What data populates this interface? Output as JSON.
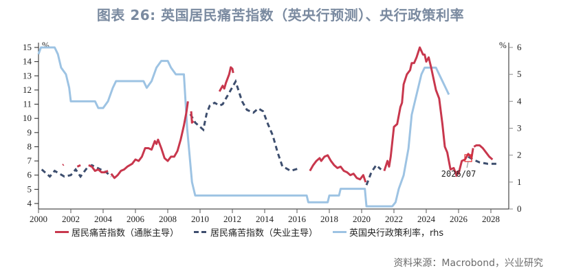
{
  "title": "图表 26: 英国居民痛苦指数（英央行预测）、央行政策利率",
  "source": "资料来源：Macrobond，兴业研究",
  "annotation": "2026/07",
  "legend": [
    {
      "label": "居民痛苦指数（通胀主导）",
      "color": "#c8374d",
      "style": "solid"
    },
    {
      "label": "居民痛苦指数（失业主导）",
      "color": "#3d4e6e",
      "style": "dashed"
    },
    {
      "label": "英国央行政策利率，rhs",
      "color": "#9dc3e3",
      "style": "solid"
    }
  ],
  "axes": {
    "left_unit": "%",
    "right_unit": "%",
    "left_ticks": [
      4,
      5,
      6,
      7,
      8,
      9,
      10,
      11,
      12,
      13,
      14,
      15
    ],
    "right_ticks": [
      0,
      1,
      2,
      3,
      4,
      5,
      6
    ],
    "x_ticks": [
      2000,
      2002,
      2004,
      2006,
      2008,
      2010,
      2012,
      2014,
      2016,
      2018,
      2020,
      2022,
      2024,
      2026,
      2028
    ]
  },
  "chart_data": {
    "type": "line",
    "title": "图表 26: 英国居民痛苦指数（英央行预测）、央行政策利率",
    "xlabel": "",
    "ylabel": "%",
    "ylabel_right": "%",
    "xlim": [
      2000,
      2029
    ],
    "ylim": [
      4,
      15
    ],
    "ylim_right": [
      0,
      6
    ],
    "grid": false,
    "legend_position": "bottom",
    "series": [
      {
        "name": "居民痛苦指数（通胀主导）",
        "axis": "left",
        "style": "solid",
        "color": "#c8374d",
        "segments": [
          [
            [
              2001.5,
              6.7
            ],
            [
              2001.55,
              6.75
            ]
          ],
          [
            [
              2002.4,
              6.6
            ],
            [
              2002.6,
              6.7
            ]
          ],
          [
            [
              2003.1,
              6.7
            ],
            [
              2003.3,
              6.6
            ],
            [
              2003.5,
              6.3
            ],
            [
              2003.7,
              6.4
            ],
            [
              2003.9,
              6.2
            ],
            [
              2004.1,
              6.2
            ],
            [
              2004.3,
              6.3
            ]
          ],
          [
            [
              2004.5,
              6.1
            ],
            [
              2004.7,
              5.8
            ],
            [
              2004.9,
              6.0
            ],
            [
              2005.1,
              6.3
            ],
            [
              2005.3,
              6.4
            ],
            [
              2005.5,
              6.6
            ],
            [
              2005.8,
              6.8
            ],
            [
              2006.0,
              7.1
            ],
            [
              2006.2,
              7.0
            ],
            [
              2006.4,
              7.3
            ],
            [
              2006.6,
              7.9
            ],
            [
              2006.8,
              7.9
            ],
            [
              2007.0,
              7.8
            ],
            [
              2007.2,
              8.4
            ],
            [
              2007.3,
              8.2
            ],
            [
              2007.4,
              8.5
            ],
            [
              2007.6,
              7.9
            ],
            [
              2007.8,
              7.2
            ],
            [
              2008.0,
              7.0
            ],
            [
              2008.2,
              7.3
            ],
            [
              2008.4,
              7.3
            ],
            [
              2008.6,
              7.7
            ],
            [
              2008.8,
              8.5
            ],
            [
              2009.0,
              9.5
            ],
            [
              2009.15,
              10.4
            ],
            [
              2009.25,
              11.2
            ]
          ],
          [
            [
              2009.45,
              10.5
            ],
            [
              2009.5,
              9.7
            ],
            [
              2009.6,
              9.8
            ]
          ],
          [
            [
              2011.2,
              11.9
            ],
            [
              2011.4,
              12.3
            ],
            [
              2011.5,
              12.1
            ],
            [
              2011.6,
              12.5
            ],
            [
              2011.8,
              13.1
            ],
            [
              2011.9,
              13.6
            ],
            [
              2012.0,
              13.5
            ],
            [
              2012.05,
              13.2
            ]
          ],
          [
            [
              2016.8,
              6.3
            ],
            [
              2016.9,
              6.5
            ],
            [
              2017.0,
              6.7
            ],
            [
              2017.2,
              7.0
            ],
            [
              2017.4,
              7.2
            ],
            [
              2017.5,
              7.0
            ],
            [
              2017.7,
              7.3
            ],
            [
              2017.9,
              7.4
            ],
            [
              2018.1,
              7.0
            ],
            [
              2018.3,
              6.7
            ],
            [
              2018.5,
              6.5
            ],
            [
              2018.7,
              6.6
            ],
            [
              2018.9,
              6.3
            ],
            [
              2019.1,
              6.2
            ],
            [
              2019.3,
              6.0
            ],
            [
              2019.5,
              6.1
            ],
            [
              2019.7,
              5.8
            ],
            [
              2019.9,
              5.7
            ],
            [
              2020.1,
              6.0
            ],
            [
              2020.25,
              5.5
            ]
          ],
          [
            [
              2021.4,
              6.3
            ],
            [
              2021.6,
              7.0
            ],
            [
              2021.7,
              6.6
            ],
            [
              2021.8,
              7.3
            ],
            [
              2022.0,
              9.4
            ],
            [
              2022.2,
              9.6
            ],
            [
              2022.4,
              10.8
            ],
            [
              2022.5,
              11.1
            ],
            [
              2022.6,
              12.4
            ],
            [
              2022.8,
              13.1
            ],
            [
              2023.0,
              13.4
            ],
            [
              2023.1,
              13.9
            ],
            [
              2023.25,
              13.9
            ],
            [
              2023.4,
              14.3
            ],
            [
              2023.6,
              15.0
            ],
            [
              2023.8,
              14.5
            ],
            [
              2023.9,
              14.5
            ],
            [
              2024.0,
              14.0
            ],
            [
              2024.15,
              14.3
            ],
            [
              2024.3,
              13.6
            ],
            [
              2024.6,
              12.0
            ],
            [
              2024.8,
              11.4
            ],
            [
              2025.0,
              9.6
            ],
            [
              2025.15,
              8.0
            ],
            [
              2025.3,
              7.6
            ],
            [
              2025.5,
              6.4
            ],
            [
              2025.7,
              6.5
            ],
            [
              2025.9,
              5.9
            ]
          ],
          [
            [
              2025.9,
              6.3
            ],
            [
              2026.0,
              6.1
            ],
            [
              2026.2,
              7.0
            ],
            [
              2026.4,
              7.1
            ],
            [
              2026.6,
              7.5
            ],
            [
              2026.8,
              7.2
            ],
            [
              2026.9,
              7.9
            ]
          ],
          [
            [
              2026.95,
              8.0
            ],
            [
              2027.1,
              8.1
            ],
            [
              2027.3,
              8.1
            ],
            [
              2027.5,
              7.9
            ],
            [
              2027.7,
              7.6
            ],
            [
              2027.9,
              7.3
            ],
            [
              2028.1,
              7.1
            ]
          ]
        ]
      },
      {
        "name": "居民痛苦指数（失业主导）",
        "axis": "left",
        "style": "dashed",
        "color": "#3d4e6e",
        "points": [
          [
            2000.2,
            6.4
          ],
          [
            2000.5,
            6.1
          ],
          [
            2000.7,
            5.9
          ],
          [
            2001.0,
            6.3
          ],
          [
            2001.3,
            6.1
          ],
          [
            2001.6,
            5.9
          ],
          [
            2002.0,
            6.0
          ],
          [
            2002.3,
            6.4
          ],
          [
            2002.6,
            5.9
          ],
          [
            2003.0,
            6.5
          ],
          [
            2003.3,
            6.7
          ],
          [
            2004.2,
            6.2
          ],
          [
            2004.5,
            5.9
          ],
          [
            2009.4,
            10.3
          ],
          [
            2009.7,
            9.7
          ],
          [
            2010.0,
            9.4
          ],
          [
            2010.2,
            9.2
          ],
          [
            2010.4,
            10.3
          ],
          [
            2010.6,
            10.9
          ],
          [
            2010.9,
            11.1
          ],
          [
            2011.2,
            10.9
          ],
          [
            2011.4,
            11.0
          ],
          [
            2012.2,
            12.6
          ],
          [
            2012.6,
            11.2
          ],
          [
            2012.9,
            10.6
          ],
          [
            2013.3,
            10.4
          ],
          [
            2013.6,
            10.7
          ],
          [
            2013.9,
            10.5
          ],
          [
            2014.2,
            9.6
          ],
          [
            2014.5,
            8.8
          ],
          [
            2014.8,
            7.6
          ],
          [
            2015.1,
            6.6
          ],
          [
            2015.3,
            6.5
          ],
          [
            2015.6,
            6.3
          ],
          [
            2015.9,
            6.4
          ],
          [
            2016.2,
            6.5
          ],
          [
            2020.3,
            5.3
          ],
          [
            2020.6,
            6.2
          ],
          [
            2020.9,
            6.7
          ],
          [
            2021.2,
            6.4
          ],
          [
            2026.6,
            7.3
          ],
          [
            2026.9,
            7.1
          ],
          [
            2027.3,
            6.9
          ],
          [
            2027.8,
            6.8
          ],
          [
            2028.4,
            6.8
          ]
        ]
      },
      {
        "name": "英国央行政策利率，rhs",
        "axis": "right",
        "style": "solid",
        "color": "#9dc3e3",
        "points": [
          [
            2000.0,
            5.75
          ],
          [
            2000.15,
            6.0
          ],
          [
            2001.0,
            6.0
          ],
          [
            2001.2,
            5.75
          ],
          [
            2001.4,
            5.25
          ],
          [
            2001.7,
            5.0
          ],
          [
            2001.9,
            4.5
          ],
          [
            2002.0,
            4.0
          ],
          [
            2003.5,
            4.0
          ],
          [
            2003.7,
            3.75
          ],
          [
            2004.0,
            3.75
          ],
          [
            2004.3,
            4.0
          ],
          [
            2004.6,
            4.5
          ],
          [
            2004.8,
            4.75
          ],
          [
            2006.5,
            4.75
          ],
          [
            2006.7,
            4.5
          ],
          [
            2007.0,
            4.75
          ],
          [
            2007.3,
            5.25
          ],
          [
            2007.6,
            5.5
          ],
          [
            2008.0,
            5.5
          ],
          [
            2008.2,
            5.25
          ],
          [
            2008.5,
            5.0
          ],
          [
            2009.0,
            5.0
          ],
          [
            2009.2,
            3.0
          ],
          [
            2009.5,
            1.0
          ],
          [
            2009.7,
            0.5
          ],
          [
            2016.6,
            0.5
          ],
          [
            2016.7,
            0.25
          ],
          [
            2017.9,
            0.25
          ],
          [
            2018.0,
            0.5
          ],
          [
            2018.6,
            0.5
          ],
          [
            2018.7,
            0.75
          ],
          [
            2020.2,
            0.75
          ],
          [
            2020.3,
            0.1
          ],
          [
            2021.9,
            0.1
          ],
          [
            2022.1,
            0.25
          ],
          [
            2022.3,
            0.75
          ],
          [
            2022.6,
            1.25
          ],
          [
            2022.9,
            2.25
          ],
          [
            2023.1,
            3.5
          ],
          [
            2023.4,
            4.25
          ],
          [
            2023.7,
            5.0
          ],
          [
            2023.9,
            5.25
          ],
          [
            2024.6,
            5.25
          ],
          [
            2024.8,
            5.0
          ],
          [
            2025.0,
            4.75
          ],
          [
            2025.2,
            4.5
          ],
          [
            2025.4,
            4.25
          ]
        ]
      }
    ]
  }
}
